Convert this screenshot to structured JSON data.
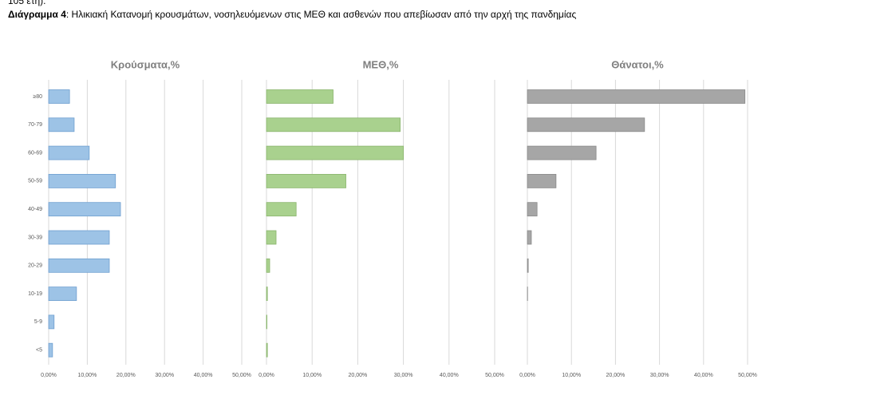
{
  "document": {
    "cut_line": "105 έτη).",
    "caption_bold": "Διάγραμμα 4",
    "caption_rest": ": Ηλικιακή Κατανομή κρουσμάτων, νοσηλευόμενων στις ΜΕΘ και ασθενών που απεβίωσαν από την αρχή της πανδημίας"
  },
  "chart_data": [
    {
      "type": "hbar",
      "title": "Κρούσματα,%",
      "color": "#9dc3e6",
      "categories": [
        "≥80",
        "70-79",
        "60-69",
        "50-59",
        "40-49",
        "30-39",
        "20-29",
        "10-19",
        "5-9",
        "<5"
      ],
      "values": [
        5.4,
        6.6,
        10.5,
        17.3,
        18.6,
        15.7,
        15.7,
        7.2,
        1.4,
        1.0
      ],
      "xlim": [
        0,
        50
      ],
      "grid": true,
      "xticks": [
        {
          "value": 0,
          "label": "0,00%"
        },
        {
          "value": 10,
          "label": "10,00%"
        },
        {
          "value": 20,
          "label": "20,00%"
        },
        {
          "value": 30,
          "label": "30,00%"
        },
        {
          "value": 40,
          "label": "40,00%"
        },
        {
          "value": 50,
          "label": "50,00%"
        }
      ]
    },
    {
      "type": "hbar",
      "title": "ΜΕΘ,%",
      "color": "#a9d18e",
      "values": [
        14.6,
        29.3,
        30.0,
        17.4,
        6.5,
        2.1,
        0.7,
        0.2,
        0.1,
        0.2
      ],
      "xlim": [
        0,
        50
      ],
      "grid": true,
      "xticks": [
        {
          "value": 0,
          "label": "0,00%"
        },
        {
          "value": 10,
          "label": "10,00%"
        },
        {
          "value": 20,
          "label": "20,00%"
        },
        {
          "value": 30,
          "label": "30,00%"
        },
        {
          "value": 40,
          "label": "40,00%"
        },
        {
          "value": 50,
          "label": "50,00%"
        }
      ]
    },
    {
      "type": "hbar",
      "title": "Θάνατοι,%",
      "color": "#a6a6a6",
      "values": [
        49.4,
        26.6,
        15.6,
        6.5,
        2.2,
        0.9,
        0.2,
        0.05,
        0,
        0
      ],
      "xlim": [
        0,
        50
      ],
      "grid": true,
      "xticks": [
        {
          "value": 0,
          "label": "0,00%"
        },
        {
          "value": 10,
          "label": "10,00%"
        },
        {
          "value": 20,
          "label": "20,00%"
        },
        {
          "value": 30,
          "label": "30,00%"
        },
        {
          "value": 40,
          "label": "40,00%"
        },
        {
          "value": 50,
          "label": "50,00%"
        }
      ]
    }
  ]
}
